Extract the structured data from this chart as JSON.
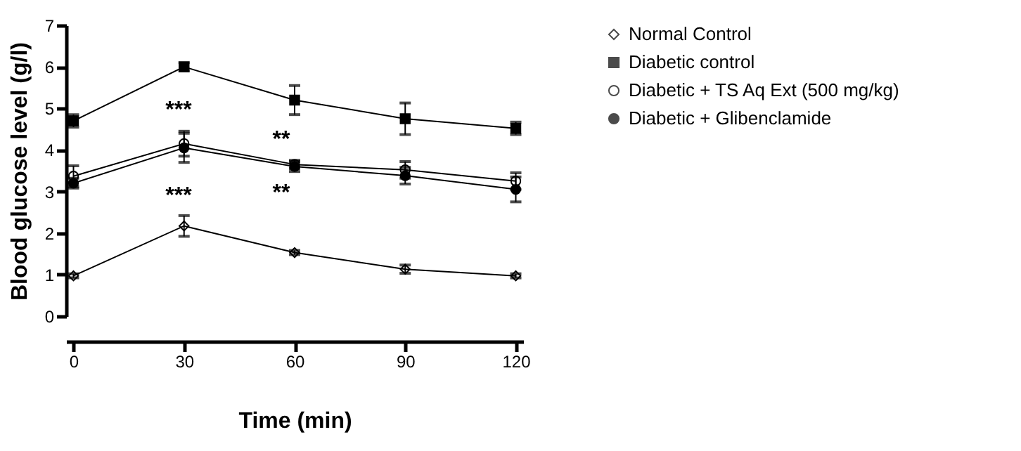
{
  "chart_data": {
    "type": "line",
    "xlabel": "Time (min)",
    "ylabel": "Blood glucose level (g/l)",
    "x": [
      0,
      30,
      60,
      90,
      120
    ],
    "xlim": [
      -2,
      122
    ],
    "xticks": [
      0,
      30,
      60,
      90,
      120
    ],
    "ylim": [
      0,
      7
    ],
    "yticks": [
      0,
      1,
      2,
      3,
      4,
      5,
      6,
      7
    ],
    "grid": false,
    "legend": "right",
    "line_style": "solid",
    "series": [
      {
        "name": "Normal Control",
        "color": "#000000",
        "marker": "diamond",
        "values": [
          0.97,
          2.17,
          1.53,
          1.13,
          0.97
        ],
        "errors": [
          0.05,
          0.25,
          0.05,
          0.1,
          0.05
        ]
      },
      {
        "name": "Diabetic control",
        "color": "#000000",
        "marker": "square",
        "values": [
          4.7,
          6.0,
          5.2,
          4.75,
          4.52
        ],
        "errors": [
          0.15,
          0.1,
          0.35,
          0.38,
          0.15
        ]
      },
      {
        "name": "Diabetic + TS Aq Ext (500 mg/kg)",
        "color": "#000000",
        "marker": "circle",
        "values": [
          3.37,
          4.15,
          3.65,
          3.52,
          3.25
        ],
        "errors": [
          0.25,
          0.3,
          0.1,
          0.2,
          0.2
        ]
      },
      {
        "name": "Diabetic + Glibenclamide",
        "color": "#000000",
        "marker": "circle",
        "values": [
          3.2,
          4.05,
          3.6,
          3.38,
          3.05
        ],
        "errors": [
          0.12,
          0.35,
          0.12,
          0.2,
          0.3
        ]
      }
    ],
    "annotations": [
      "***",
      "***",
      "**",
      "**"
    ]
  }
}
